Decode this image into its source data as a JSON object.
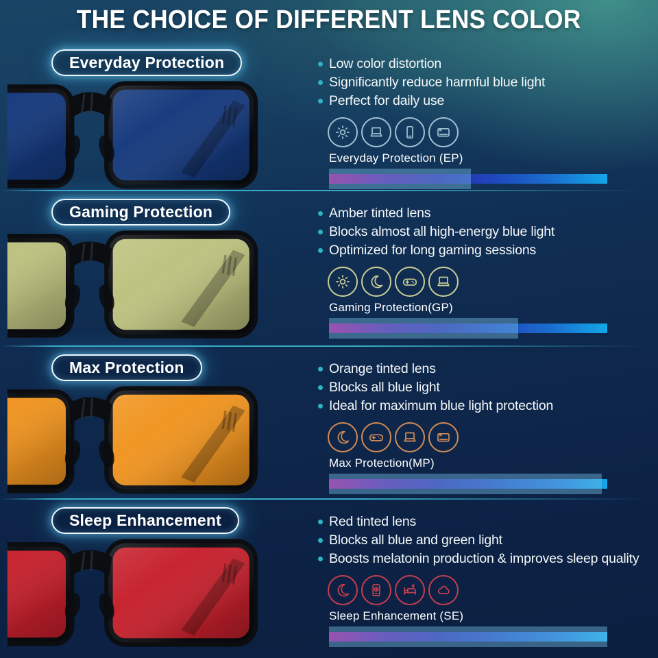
{
  "title": "THE CHOICE OF DIFFERENT LENS COLOR",
  "colors": {
    "pill_border": "#eef8ff",
    "pill_glow": "rgba(110,215,255,0.55)",
    "bullet_dot": "#2fb3c4",
    "divider": "#3fc3d9",
    "overlay": "rgba(123,196,234,0.42)",
    "spectrum": [
      "#ad0187",
      "#5a15a0",
      "#2b27a6",
      "#1e49bd",
      "#1a6ecf",
      "#13a7e8"
    ]
  },
  "sections": [
    {
      "label": "Everyday Protection",
      "bullets": [
        "Low color distortion",
        "Significantly reduce harmful blue light",
        "Perfect for daily use"
      ],
      "icons": [
        "sun",
        "laptop",
        "smartphone",
        "tv"
      ],
      "icon_color": "#a9c9da",
      "lens_color": "#15397d",
      "bar_label": "Everyday Protection (EP)",
      "blocked_percent": 51
    },
    {
      "label": "Gaming Protection",
      "bullets": [
        "Amber tinted lens",
        "Blocks almost all high-energy blue light",
        "Optimized for long gaming sessions"
      ],
      "icons": [
        "sun",
        "moon",
        "gamepad",
        "laptop"
      ],
      "icon_color": "#d5d79b",
      "lens_color": "#bdc17e",
      "bar_label": "Gaming Protection(GP)",
      "blocked_percent": 68
    },
    {
      "label": "Max Protection",
      "bullets": [
        "Orange tinted lens",
        "Blocks all blue light",
        "Ideal for maximum blue light protection"
      ],
      "icons": [
        "moon",
        "gamepad",
        "laptop",
        "tv"
      ],
      "icon_color": "#de9157",
      "lens_color": "#f0941f",
      "bar_label": "Max Protection(MP)",
      "blocked_percent": 98
    },
    {
      "label": "Sleep Enhancement",
      "bullets": [
        "Red tinted lens",
        "Blocks all blue and green light",
        "Boosts melatonin production & improves sleep quality"
      ],
      "icons": [
        "moon",
        "phone",
        "bed",
        "cloud"
      ],
      "icon_color": "#d2404f",
      "lens_color": "#c6202c",
      "bar_label": "Sleep Enhancement (SE)",
      "blocked_percent": 100
    }
  ]
}
